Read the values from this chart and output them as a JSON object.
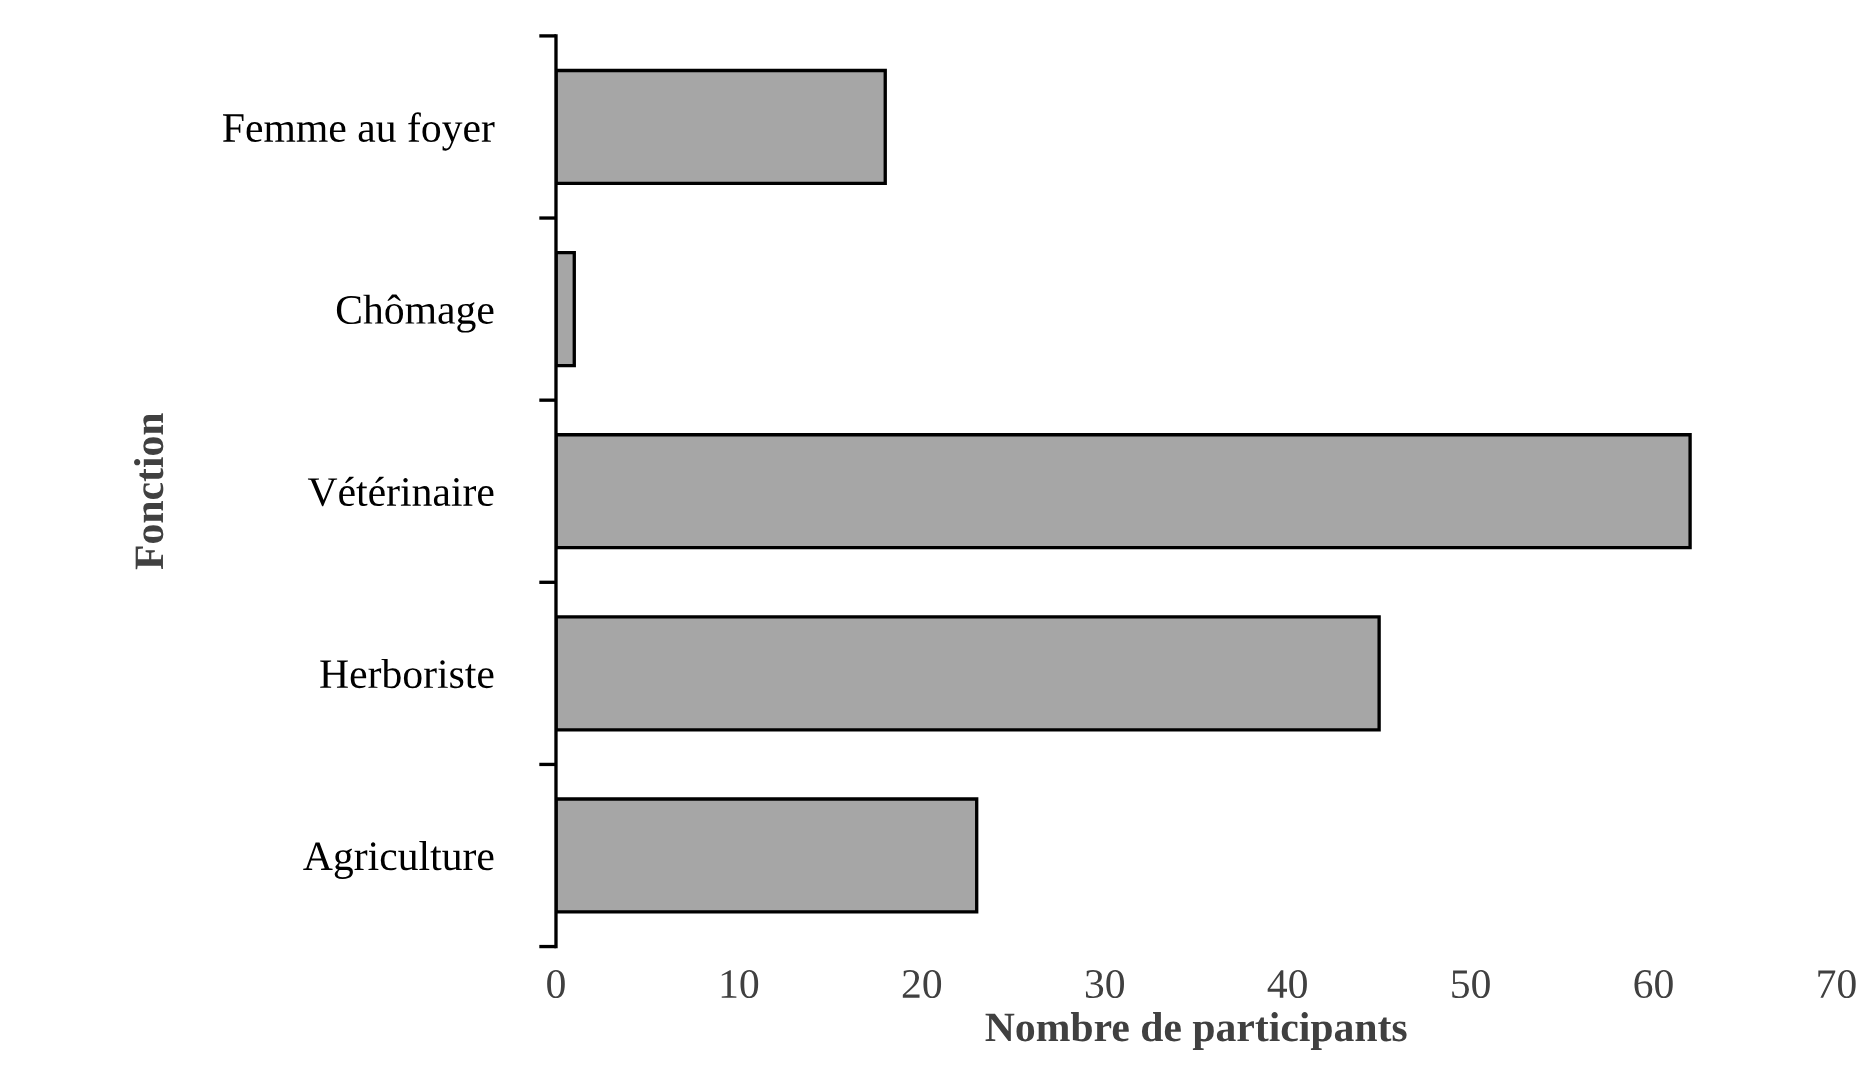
{
  "chart_data": {
    "type": "bar",
    "orientation": "horizontal",
    "xlabel": "Nombre de participants",
    "ylabel": "Fonction",
    "categories": [
      "Femme au foyer",
      "Chômage",
      "Vétérinaire",
      "Herboriste",
      "Agriculture"
    ],
    "values": [
      18,
      1,
      62,
      45,
      23
    ],
    "color": "#a6a6a6",
    "xlim": [
      0,
      70
    ],
    "xticks": [
      0,
      10,
      20,
      30,
      40,
      50,
      60,
      70
    ],
    "grid": false,
    "legend": false
  }
}
